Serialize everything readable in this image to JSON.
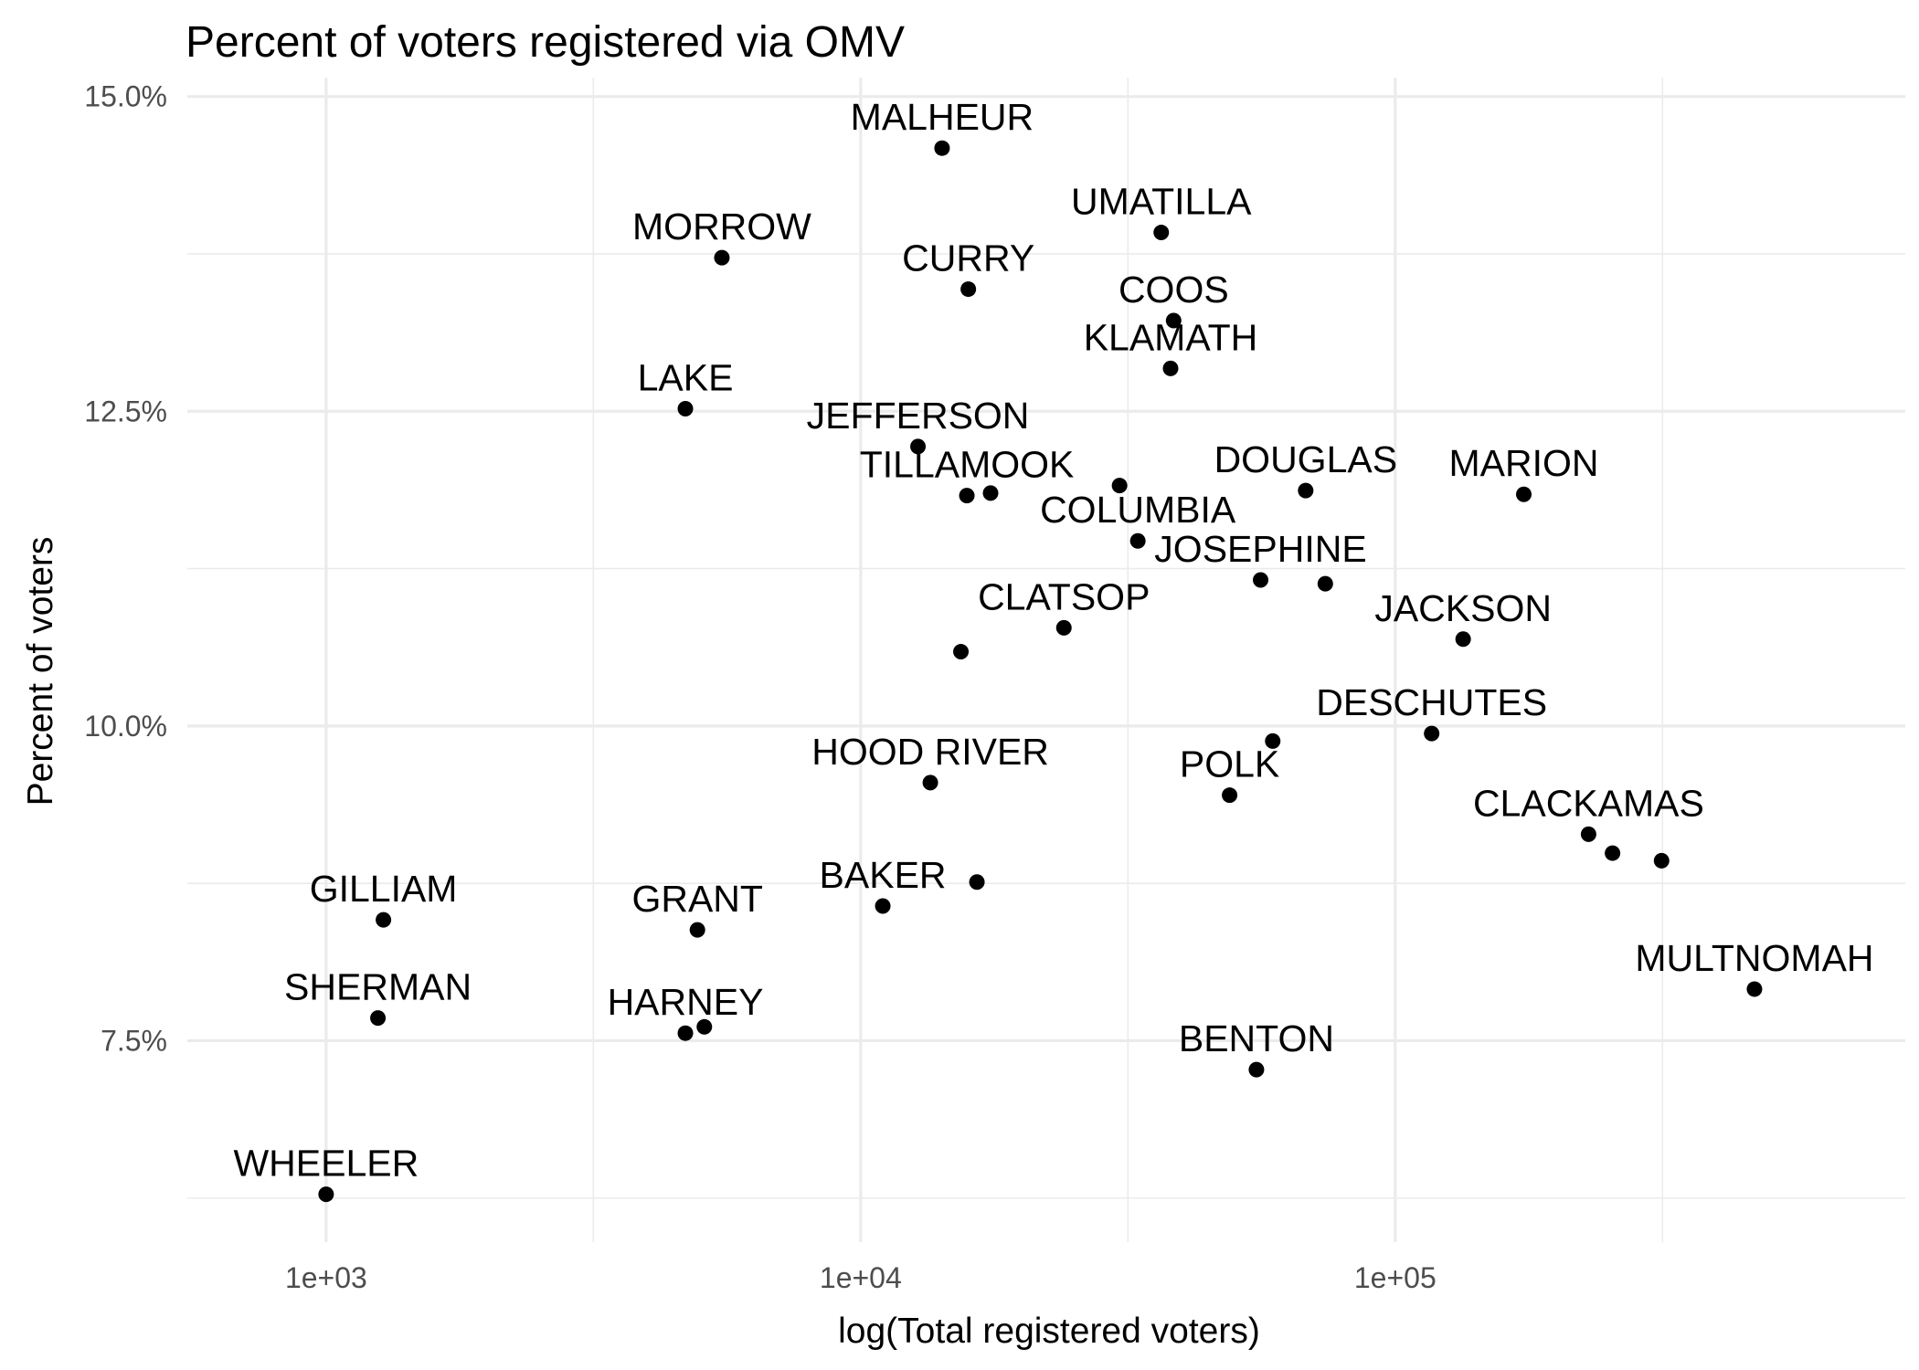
{
  "chart_data": {
    "type": "scatter",
    "title": "Percent of voters registered via OMV",
    "xlabel": "log(Total registered voters)",
    "ylabel": "Percent of voters",
    "x_scale": "log10",
    "xlim": [
      550,
      900000
    ],
    "ylim": [
      0.059,
      0.1515
    ],
    "x_ticks": [
      {
        "value": 1000,
        "label": "1e+03"
      },
      {
        "value": 10000,
        "label": "1e+04"
      },
      {
        "value": 100000,
        "label": "1e+05"
      }
    ],
    "y_ticks": [
      {
        "value": 0.075,
        "label": "7.5%"
      },
      {
        "value": 0.1,
        "label": "10.0%"
      },
      {
        "value": 0.125,
        "label": "12.5%"
      },
      {
        "value": 0.15,
        "label": "15.0%"
      }
    ],
    "grid": true,
    "legend": "none",
    "points": [
      {
        "x": 14200,
        "y": 0.1459,
        "label": "MALHEUR"
      },
      {
        "x": 5500,
        "y": 0.1372,
        "label": "MORROW"
      },
      {
        "x": 36500,
        "y": 0.1392,
        "label": "UMATILLA"
      },
      {
        "x": 15900,
        "y": 0.1347,
        "label": "CURRY"
      },
      {
        "x": 38500,
        "y": 0.1322,
        "label": "COOS"
      },
      {
        "x": 38000,
        "y": 0.1284,
        "label": "KLAMATH"
      },
      {
        "x": 4700,
        "y": 0.1252,
        "label": "LAKE"
      },
      {
        "x": 12800,
        "y": 0.1222,
        "label": "JEFFERSON"
      },
      {
        "x": 15800,
        "y": 0.1183,
        "label": "TILLAMOOK"
      },
      {
        "x": 17500,
        "y": 0.1185,
        "label": ""
      },
      {
        "x": 30500,
        "y": 0.1191,
        "label": ""
      },
      {
        "x": 68000,
        "y": 0.1187,
        "label": "DOUGLAS"
      },
      {
        "x": 174000,
        "y": 0.1184,
        "label": "MARION"
      },
      {
        "x": 33000,
        "y": 0.1147,
        "label": "COLUMBIA"
      },
      {
        "x": 56000,
        "y": 0.1116,
        "label": "JOSEPHINE"
      },
      {
        "x": 74000,
        "y": 0.1113,
        "label": ""
      },
      {
        "x": 24000,
        "y": 0.1078,
        "label": "CLATSOP"
      },
      {
        "x": 15400,
        "y": 0.1059,
        "label": ""
      },
      {
        "x": 134000,
        "y": 0.1069,
        "label": "JACKSON"
      },
      {
        "x": 117000,
        "y": 0.0994,
        "label": "DESCHUTES"
      },
      {
        "x": 59000,
        "y": 0.0988,
        "label": ""
      },
      {
        "x": 49000,
        "y": 0.0945,
        "label": "POLK"
      },
      {
        "x": 13500,
        "y": 0.0955,
        "label": "HOOD RIVER"
      },
      {
        "x": 230000,
        "y": 0.0914,
        "label": "CLACKAMAS"
      },
      {
        "x": 255000,
        "y": 0.0899,
        "label": ""
      },
      {
        "x": 315000,
        "y": 0.0893,
        "label": ""
      },
      {
        "x": 16500,
        "y": 0.0876,
        "label": ""
      },
      {
        "x": 11000,
        "y": 0.0857,
        "label": "BAKER"
      },
      {
        "x": 1280,
        "y": 0.0846,
        "label": "GILLIAM"
      },
      {
        "x": 4950,
        "y": 0.0838,
        "label": "GRANT"
      },
      {
        "x": 1250,
        "y": 0.0768,
        "label": "SHERMAN"
      },
      {
        "x": 4700,
        "y": 0.0756,
        "label": "HARNEY"
      },
      {
        "x": 5100,
        "y": 0.0761,
        "label": ""
      },
      {
        "x": 55000,
        "y": 0.0727,
        "label": "BENTON"
      },
      {
        "x": 470000,
        "y": 0.0791,
        "label": "MULTNOMAH"
      },
      {
        "x": 1000,
        "y": 0.0628,
        "label": "WHEELER"
      }
    ]
  }
}
